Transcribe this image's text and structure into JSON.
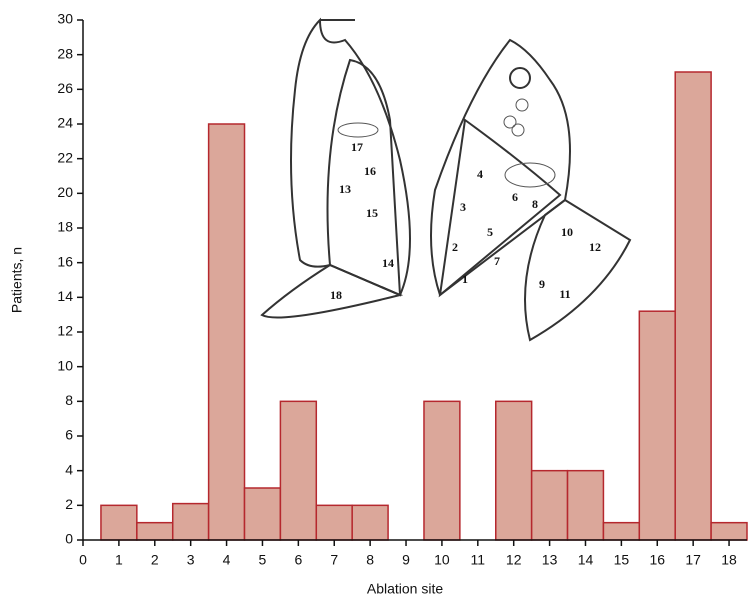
{
  "chart_data": {
    "type": "bar",
    "x_label": "Ablation site",
    "y_label": "Patients, n",
    "x": [
      1,
      2,
      3,
      4,
      5,
      6,
      7,
      8,
      9,
      10,
      11,
      12,
      13,
      14,
      15,
      16,
      17,
      18
    ],
    "values": [
      2,
      1,
      2.1,
      24,
      3,
      8,
      2,
      2,
      0,
      8,
      0,
      8,
      4,
      4,
      1,
      13.2,
      27,
      1
    ],
    "color": "#dba79a",
    "edge_color": "#b5282e",
    "xlim": [
      0,
      18.5
    ],
    "xticks": [
      0,
      1,
      2,
      3,
      4,
      5,
      6,
      7,
      8,
      9,
      10,
      11,
      12,
      13,
      14,
      15,
      16,
      17,
      18
    ],
    "ylim": [
      0,
      30
    ],
    "yticks": [
      0,
      2,
      4,
      6,
      8,
      10,
      12,
      14,
      16,
      18,
      20,
      22,
      24,
      26,
      28,
      30
    ],
    "grid": false
  },
  "illustration": {
    "labels": [
      "17",
      "16",
      "13",
      "15",
      "14",
      "18",
      "4",
      "3",
      "6",
      "8",
      "5",
      "2",
      "7",
      "1",
      "10",
      "12",
      "9",
      "11"
    ]
  }
}
